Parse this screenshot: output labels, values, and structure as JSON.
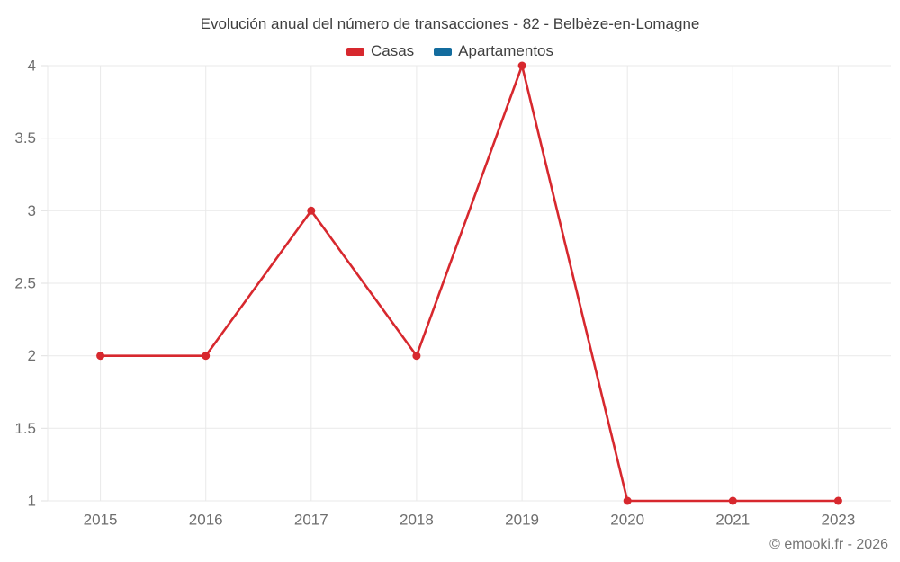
{
  "title": "Evolución anual del número de transacciones - 82 - Belbèze-en-Lomagne",
  "legend": [
    {
      "label": "Casas",
      "color": "#d7282e",
      "swatch_icon": "red-swatch-icon"
    },
    {
      "label": "Apartamentos",
      "color": "#136c9e",
      "swatch_icon": "blue-swatch-icon"
    }
  ],
  "watermark": "© emooki.fr - 2026",
  "colors": {
    "casas": "#d7282e",
    "apartamentos": "#136c9e",
    "gridline": "#e9e9e9",
    "axis_text": "#6e6e6e",
    "title_text": "#3f3f3f",
    "background": "#ffffff"
  },
  "chart_data": {
    "type": "line",
    "title": "Evolución anual del número de transacciones - 82 - Belbèze-en-Lomagne",
    "categories": [
      "2015",
      "2016",
      "2017",
      "2018",
      "2019",
      "2020",
      "2021",
      "2023"
    ],
    "series": [
      {
        "name": "Casas",
        "color": "#d7282e",
        "values": [
          2,
          2,
          3,
          2,
          4,
          1,
          1,
          1
        ]
      },
      {
        "name": "Apartamentos",
        "color": "#136c9e",
        "values": []
      }
    ],
    "xlabel": "",
    "ylabel": "",
    "ylim": [
      1,
      4
    ],
    "yticks": [
      1,
      1.5,
      2,
      2.5,
      3,
      3.5,
      4
    ],
    "grid": true,
    "legend_position": "top",
    "marker": "circle"
  }
}
